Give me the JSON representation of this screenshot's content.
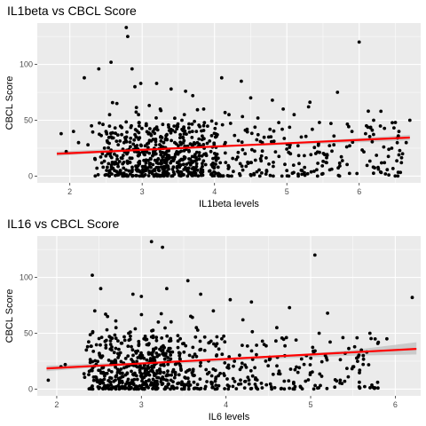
{
  "chart_data": [
    {
      "type": "scatter",
      "title": "IL1beta vs CBCL Score",
      "xlabel": "IL1beta levels",
      "ylabel": "CBCL Score",
      "xlim": [
        1.55,
        6.85
      ],
      "ylim": [
        -6,
        137
      ],
      "xticks": [
        2,
        3,
        4,
        5,
        6
      ],
      "yticks": [
        0,
        50,
        100
      ],
      "grid": true,
      "colors": {
        "panel": "#ebebeb",
        "grid": "#ffffff",
        "point": "#000000",
        "fit": "#ff0000",
        "band": "#bfbfbf"
      },
      "fit": {
        "x": [
          1.82,
          6.7
        ],
        "y": [
          20,
          34.5
        ]
      },
      "band": {
        "x": [
          1.82,
          2.5,
          3.5,
          4.5,
          5.5,
          6.7
        ],
        "upper": [
          22,
          24,
          26,
          28,
          32,
          37
        ],
        "lower": [
          18,
          21,
          24,
          27,
          29,
          32
        ]
      },
      "sample_points": [
        [
          2.78,
          133
        ],
        [
          2.8,
          125
        ],
        [
          6.0,
          120
        ],
        [
          2.57,
          102
        ],
        [
          2.4,
          96
        ],
        [
          2.86,
          96
        ],
        [
          2.2,
          88
        ],
        [
          4.1,
          88
        ],
        [
          4.37,
          85
        ],
        [
          2.98,
          83
        ],
        [
          3.2,
          83
        ],
        [
          2.9,
          80
        ],
        [
          3.4,
          78
        ],
        [
          3.6,
          76
        ],
        [
          3.7,
          72
        ],
        [
          4.5,
          70
        ],
        [
          4.8,
          68
        ],
        [
          5.7,
          75
        ],
        [
          5.3,
          62
        ],
        [
          4.95,
          60
        ],
        [
          6.3,
          58
        ],
        [
          6.2,
          50
        ],
        [
          6.5,
          48
        ],
        [
          6.7,
          50
        ],
        [
          6.1,
          45
        ],
        [
          5.1,
          55
        ],
        [
          5.45,
          48
        ],
        [
          4.6,
          52
        ],
        [
          1.88,
          38
        ],
        [
          1.95,
          22
        ],
        [
          2.05,
          40
        ],
        [
          2.12,
          30
        ],
        [
          2.25,
          28
        ],
        [
          2.3,
          45
        ],
        [
          6.55,
          40
        ],
        [
          6.65,
          30
        ],
        [
          6.45,
          25
        ],
        [
          6.35,
          12
        ],
        [
          6.6,
          20
        ],
        [
          5.9,
          40
        ],
        [
          5.65,
          28
        ],
        [
          5.55,
          12
        ],
        [
          5.2,
          35
        ],
        [
          5.05,
          20
        ],
        [
          5.0,
          5
        ],
        [
          4.75,
          35
        ],
        [
          4.65,
          18
        ],
        [
          4.45,
          42
        ],
        [
          4.3,
          15
        ],
        [
          4.2,
          55
        ],
        [
          4.15,
          30
        ],
        [
          4.05,
          8
        ],
        [
          3.95,
          22
        ],
        [
          3.85,
          60
        ],
        [
          3.75,
          40
        ],
        [
          3.65,
          12
        ],
        [
          3.55,
          50
        ],
        [
          3.45,
          30
        ],
        [
          3.35,
          15
        ],
        [
          3.25,
          60
        ],
        [
          3.15,
          40
        ],
        [
          3.05,
          5
        ],
        [
          2.95,
          55
        ],
        [
          2.85,
          45
        ],
        [
          2.75,
          30
        ],
        [
          2.65,
          65
        ],
        [
          2.6,
          12
        ],
        [
          2.5,
          40
        ],
        [
          2.45,
          20
        ],
        [
          2.55,
          55
        ],
        [
          2.7,
          5
        ],
        [
          2.35,
          15
        ]
      ],
      "cloud": {
        "n": 780,
        "x": [
          2.4,
          6.6
        ],
        "center": 3.25
      }
    },
    {
      "type": "scatter",
      "title": "IL16 vs CBCL Score",
      "xlabel": "IL6 levels",
      "ylabel": "CBCL Score",
      "xlim": [
        1.77,
        6.3
      ],
      "ylim": [
        -6,
        137
      ],
      "xticks": [
        2,
        3,
        4,
        5,
        6
      ],
      "yticks": [
        0,
        50,
        100
      ],
      "grid": true,
      "colors": {
        "panel": "#ebebeb",
        "grid": "#ffffff",
        "point": "#000000",
        "fit": "#ff0000",
        "band": "#bfbfbf"
      },
      "fit": {
        "x": [
          1.88,
          6.25
        ],
        "y": [
          18.5,
          36
        ]
      },
      "band": {
        "x": [
          1.88,
          2.5,
          3.5,
          4.5,
          5.5,
          6.25
        ],
        "upper": [
          21,
          23,
          25,
          29,
          35,
          42
        ],
        "lower": [
          16,
          19.5,
          23,
          27,
          30,
          31
        ]
      },
      "sample_points": [
        [
          3.12,
          132
        ],
        [
          3.25,
          127
        ],
        [
          5.05,
          120
        ],
        [
          2.42,
          102
        ],
        [
          3.55,
          97
        ],
        [
          2.52,
          90
        ],
        [
          3.3,
          90
        ],
        [
          2.9,
          85
        ],
        [
          3.0,
          83
        ],
        [
          3.7,
          85
        ],
        [
          4.05,
          80
        ],
        [
          4.3,
          78
        ],
        [
          6.2,
          82
        ],
        [
          5.2,
          68
        ],
        [
          4.75,
          73
        ],
        [
          3.85,
          70
        ],
        [
          1.9,
          8
        ],
        [
          2.05,
          20
        ],
        [
          2.1,
          22
        ],
        [
          2.35,
          35
        ],
        [
          2.45,
          70
        ],
        [
          2.6,
          65
        ],
        [
          2.7,
          55
        ],
        [
          5.7,
          50
        ],
        [
          5.9,
          45
        ],
        [
          5.8,
          42
        ],
        [
          5.6,
          35
        ],
        [
          5.5,
          20
        ],
        [
          5.35,
          8
        ],
        [
          5.1,
          50
        ],
        [
          4.95,
          30
        ],
        [
          4.85,
          15
        ],
        [
          4.6,
          55
        ],
        [
          4.45,
          40
        ],
        [
          4.35,
          10
        ],
        [
          4.2,
          62
        ],
        [
          4.1,
          25
        ],
        [
          3.95,
          45
        ],
        [
          3.8,
          15
        ],
        [
          3.65,
          55
        ],
        [
          3.45,
          30
        ],
        [
          3.35,
          8
        ],
        [
          3.2,
          60
        ],
        [
          3.05,
          45
        ],
        [
          2.95,
          20
        ],
        [
          2.85,
          50
        ],
        [
          2.75,
          10
        ],
        [
          2.65,
          35
        ],
        [
          2.55,
          15
        ]
      ],
      "cloud": {
        "n": 700,
        "x": [
          2.4,
          5.8
        ],
        "center": 3.05
      }
    }
  ]
}
